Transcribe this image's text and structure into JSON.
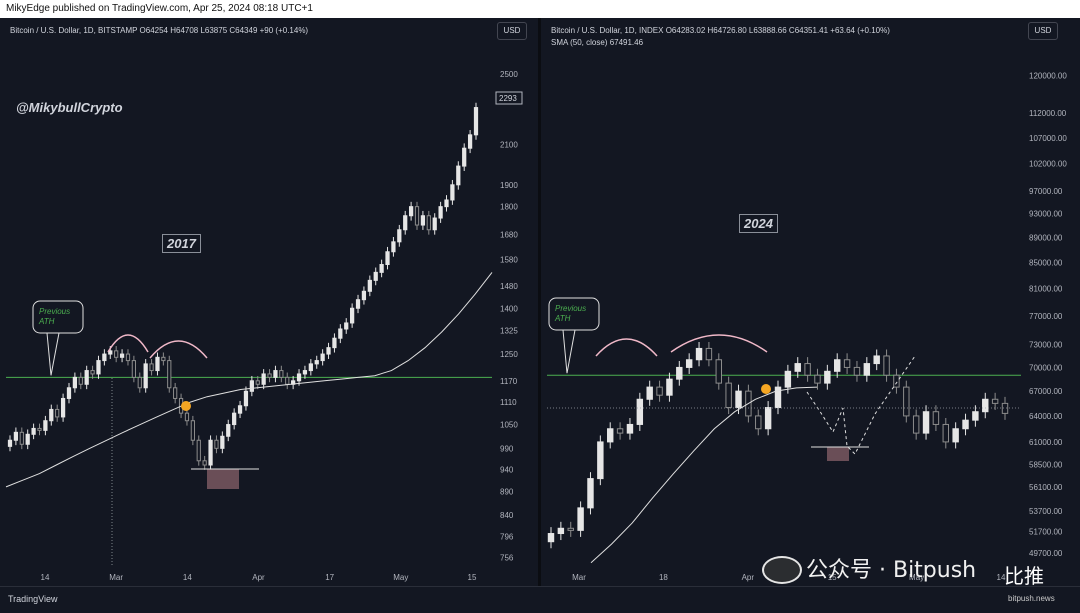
{
  "header": {
    "published_line": "MikyEdge published on TradingView.com, Apr 25, 2024 08:18 UTC+1"
  },
  "footer": {
    "tradingview_label": "TradingView",
    "wechat_text": "公众号 · Bitpush",
    "bitpush_logo": "比推",
    "bitpush_url": "bitpush.news"
  },
  "left_panel": {
    "symbol_line": "Bitcoin / U.S. Dollar, 1D, BITSTAMP  O64254  H64708  L63875  C64349  +90 (+0.14%)",
    "currency": "USD",
    "handle": "@MikybullCrypto",
    "year_label": "2017",
    "annotation": "Previous ATH",
    "price_tag": "2293"
  },
  "right_panel": {
    "symbol_line": "Bitcoin / U.S. Dollar, 1D, INDEX  O64283.02  H64726.80  L63888.66  C64351.41  +63.64 (+0.10%)",
    "sma_line": "SMA (50, close)  67491.46",
    "currency": "USD",
    "year_label": "2024",
    "annotation": "Previous ATH"
  },
  "chart_data": [
    {
      "type": "candlestick",
      "title": "Bitcoin / U.S. Dollar, 1D, BITSTAMP",
      "x_ticks": [
        "14",
        "Mar",
        "14",
        "Apr",
        "17",
        "May",
        "15"
      ],
      "y_ticks": [
        756,
        796,
        840,
        890,
        940,
        990,
        1050,
        1110,
        1170,
        1250,
        1325,
        1400,
        1480,
        1580,
        1680,
        1800,
        1900,
        2100,
        2500
      ],
      "y_scale": "log",
      "ylim": [
        740,
        2600
      ],
      "horizontal_line": 1180,
      "series": [
        {
          "name": "close",
          "values": [
            1010,
            1030,
            1000,
            1025,
            1040,
            1035,
            1060,
            1090,
            1070,
            1120,
            1150,
            1180,
            1160,
            1200,
            1190,
            1230,
            1250,
            1260,
            1240,
            1250,
            1230,
            1180,
            1150,
            1220,
            1200,
            1240,
            1230,
            1150,
            1120,
            1080,
            1060,
            1010,
            960,
            950,
            1010,
            990,
            1020,
            1050,
            1080,
            1100,
            1140,
            1170,
            1160,
            1190,
            1180,
            1200,
            1180,
            1160,
            1170,
            1190,
            1200,
            1220,
            1230,
            1250,
            1270,
            1300,
            1330,
            1350,
            1400,
            1430,
            1460,
            1500,
            1530,
            1560,
            1610,
            1650,
            1700,
            1760,
            1800,
            1720,
            1760,
            1700,
            1750,
            1800,
            1830,
            1900,
            1990,
            2080,
            2150,
            2300
          ]
        },
        {
          "name": "SMA 50",
          "values": [
            900,
            915,
            930,
            950,
            970,
            990,
            1010,
            1030,
            1050,
            1070,
            1090,
            1110,
            1125,
            1135,
            1145,
            1150,
            1155,
            1160,
            1165,
            1170,
            1175,
            1180,
            1185,
            1200,
            1230,
            1270,
            1320,
            1380,
            1450,
            1530
          ]
        }
      ]
    },
    {
      "type": "candlestick",
      "title": "Bitcoin / U.S. Dollar, 1D, INDEX",
      "x_ticks": [
        "Mar",
        "18",
        "Apr",
        "15",
        "May",
        "14"
      ],
      "y_ticks": [
        49700,
        51700,
        53700,
        56100,
        58500,
        61000,
        64000,
        67000,
        70000,
        73000,
        77000,
        81000,
        85000,
        89000,
        93000,
        97000,
        102000,
        107000,
        112000,
        120000
      ],
      "y_scale": "log",
      "ylim": [
        48500,
        124000
      ],
      "horizontal_line": 69000,
      "series": [
        {
          "name": "close",
          "values": [
            51500,
            52000,
            51800,
            54000,
            57000,
            61000,
            62500,
            62000,
            63000,
            66000,
            67500,
            66500,
            68500,
            70000,
            71000,
            72500,
            71000,
            68000,
            65000,
            67000,
            64000,
            62500,
            65000,
            67500,
            69500,
            70500,
            69000,
            68000,
            69500,
            71000,
            70000,
            69000,
            70500,
            71500,
            69000,
            67500,
            64000,
            62000,
            64500,
            63000,
            61000,
            62500,
            63500,
            64500,
            66000,
            65500,
            64300
          ]
        },
        {
          "name": "SMA 50",
          "values": [
            48800,
            50500,
            52500,
            55000,
            57500,
            60000,
            62500,
            64500,
            66000,
            67000,
            67400,
            67500
          ]
        }
      ]
    }
  ]
}
